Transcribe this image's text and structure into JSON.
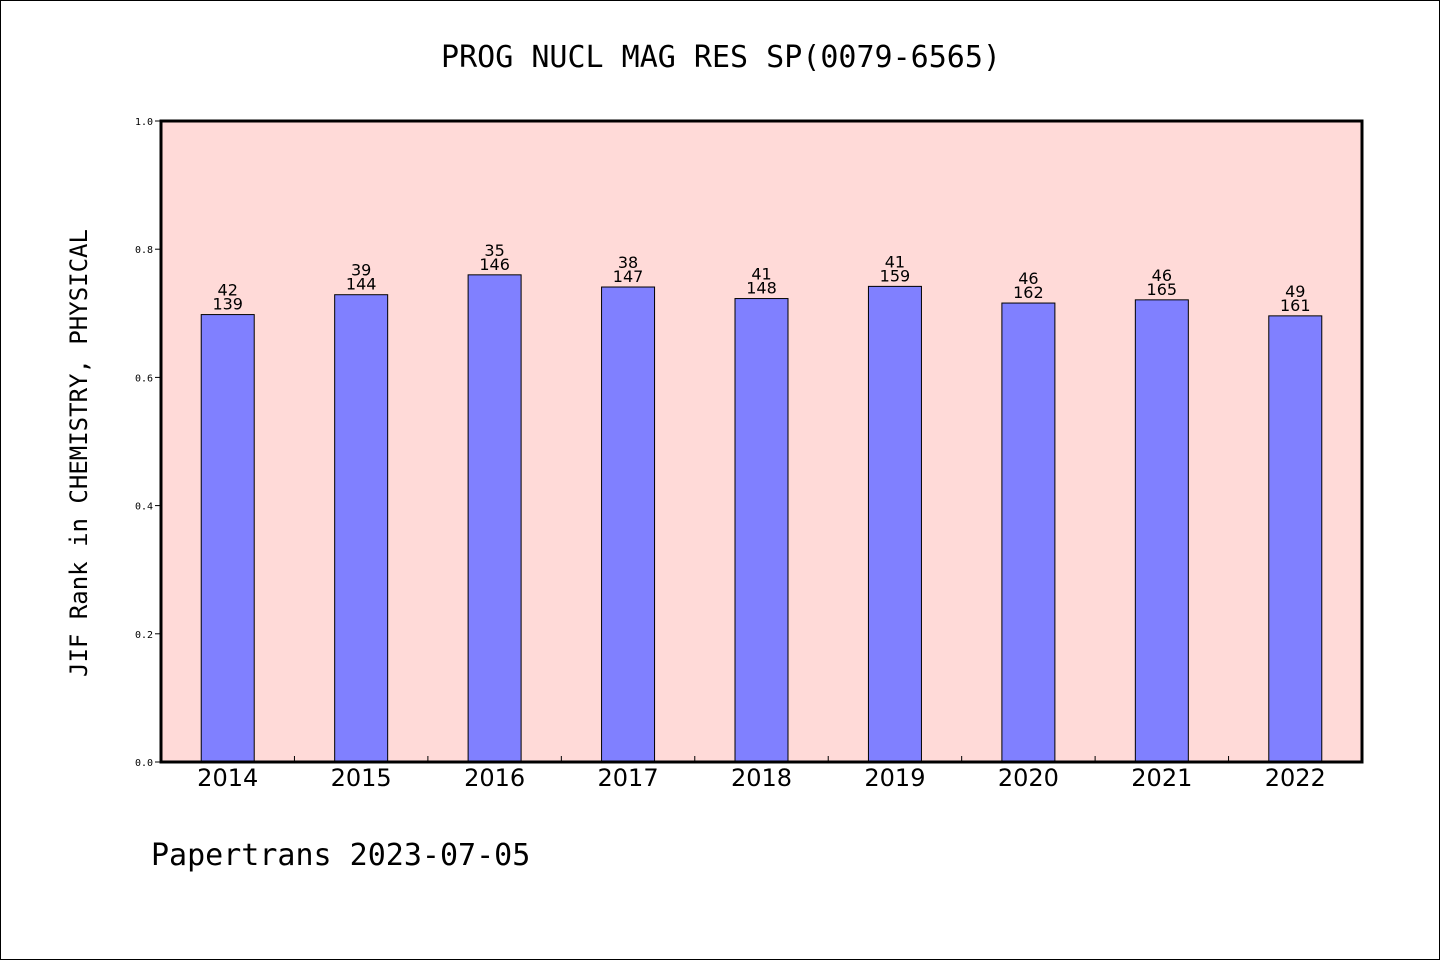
{
  "chart_data": {
    "type": "bar",
    "title": "PROG NUCL MAG RES SP(0079-6565)",
    "ylabel": "JIF Rank in CHEMISTRY, PHYSICAL",
    "xlabel": "",
    "ylim": [
      0,
      1.0
    ],
    "yticks": [
      "0.0",
      "0.2",
      "0.4",
      "0.6",
      "0.8",
      "1.0"
    ],
    "categories": [
      "2014",
      "2015",
      "2016",
      "2017",
      "2018",
      "2019",
      "2020",
      "2021",
      "2022"
    ],
    "values": [
      0.698,
      0.729,
      0.76,
      0.741,
      0.723,
      0.742,
      0.716,
      0.721,
      0.696
    ],
    "rank": [
      "42",
      "39",
      "35",
      "38",
      "41",
      "41",
      "46",
      "46",
      "49"
    ],
    "total": [
      "139",
      "144",
      "146",
      "147",
      "148",
      "159",
      "162",
      "165",
      "161"
    ],
    "grid": false,
    "legend": "none",
    "colors": {
      "plot_background": "#FFDAD8",
      "bar_fill": "#8080FF",
      "bar_stroke": "#000000"
    }
  },
  "footer": "Papertrans 2023-07-05"
}
